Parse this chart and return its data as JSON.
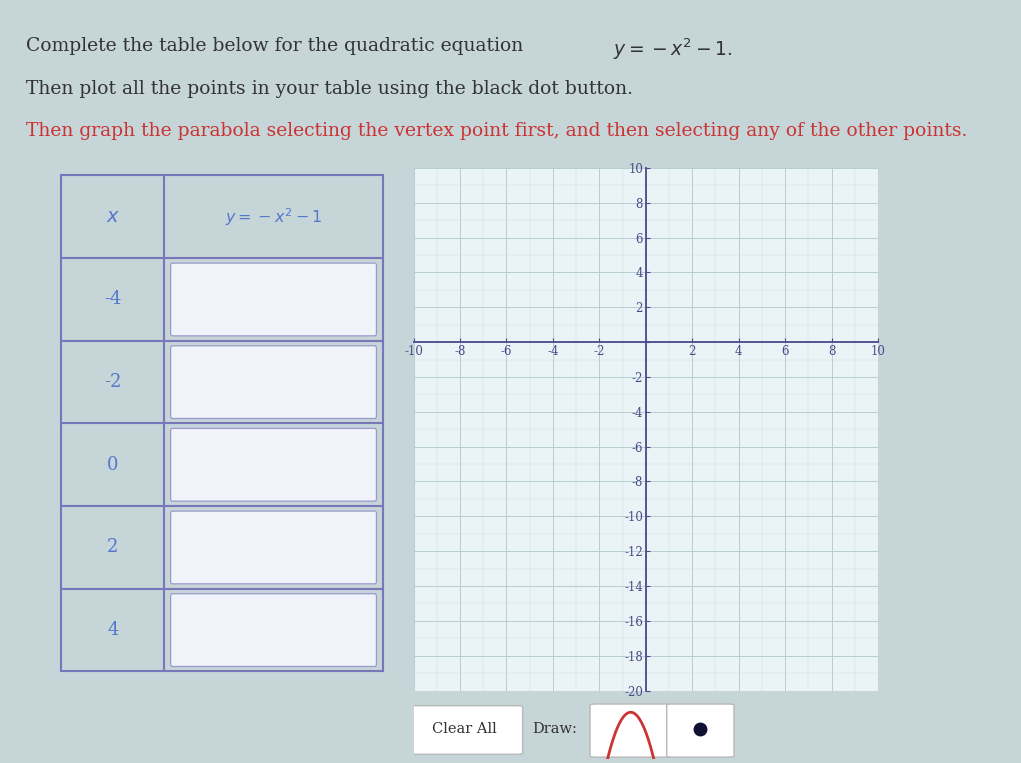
{
  "title_prefix": "Complete the table below for the quadratic equation  ",
  "equation_latex": "$y=-x^2-1$.",
  "instruction1": "Then plot all the points in your table using the black dot button.",
  "instruction2": "Then graph the parabola selecting the vertex point first, and then selecting any of the other points.",
  "table_x_values": [
    -4,
    -2,
    0,
    2,
    4
  ],
  "table_header_x": "x",
  "graph_xlim": [
    -10,
    10
  ],
  "graph_ylim": [
    -20,
    10
  ],
  "bg_color": "#eaf3f5",
  "grid_major_color": "#b8ccd4",
  "grid_minor_color_x": "#d4b8b8",
  "grid_minor_color": "#cce0e4",
  "axis_color": "#4a4a8a",
  "tick_label_color": "#4a4a8a",
  "table_border_color": "#7777bb",
  "table_header_text_color": "#5577cc",
  "table_x_text_color": "#5577cc",
  "table_input_bg": "#f0f4fa",
  "table_input_border": "#9999cc",
  "title_color_black": "#333333",
  "instruction2_color": "#cc3333",
  "clear_all_label": "Clear All",
  "draw_label": "Draw:",
  "parabola_color": "#cc3333",
  "dot_color": "#111133",
  "page_bg": "#c5d5d8",
  "graph_bg_left": "#dce8ec",
  "graph_bg_right": "#f0f6f8"
}
